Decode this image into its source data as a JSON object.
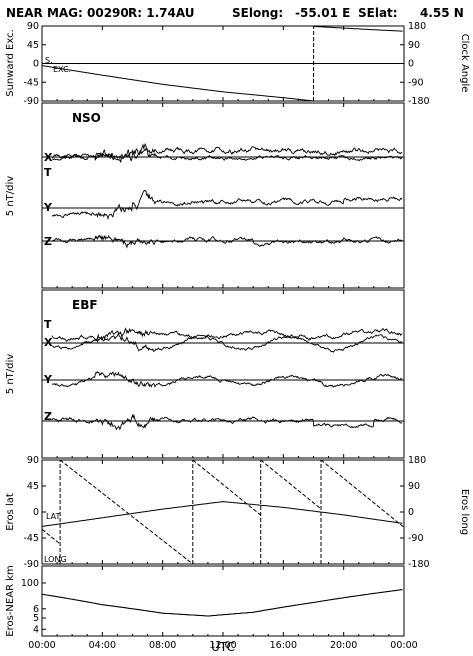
{
  "title": {
    "mission": "NEAR MAG: 00290",
    "r": "R: 1.74AU",
    "selong_label": "SElong:",
    "selong_value": "-55.01 E",
    "selat_label": "SElat:",
    "selat_value": "4.55 N"
  },
  "xaxis": {
    "label": "UTC",
    "ticks": [
      "00:00",
      "04:00",
      "08:00",
      "12:00",
      "16:00",
      "20:00",
      "00:00"
    ],
    "ticks_hours": [
      0,
      4,
      8,
      12,
      16,
      20,
      24
    ],
    "range_hours": [
      0,
      24
    ]
  },
  "chart_data": [
    {
      "type": "line",
      "panel": "sunward-clock",
      "ylabel_left": "Sunward Exc.",
      "ylabel_right": "Clock Angle",
      "left_ticks": [
        "90",
        "45",
        "0",
        "-45",
        "-90"
      ],
      "right_ticks": [
        "180",
        "90",
        "0",
        "-90",
        "-180"
      ],
      "ylim_left": [
        -90,
        90
      ],
      "ylim_right": [
        -180,
        180
      ],
      "annotations": [
        "S.",
        "EXC."
      ],
      "series": [
        {
          "axis": "left",
          "style": "solid",
          "x": [
            0,
            4,
            8,
            12,
            16,
            18
          ],
          "y": [
            -5,
            -28,
            -50,
            -68,
            -82,
            -90
          ]
        },
        {
          "axis": "right",
          "style": "dashed",
          "x": [
            18,
            18.01
          ],
          "y": [
            -180,
            180
          ]
        },
        {
          "axis": "right",
          "style": "solid",
          "x": [
            18.01,
            20,
            22,
            24
          ],
          "y": [
            178,
            170,
            162,
            155
          ]
        },
        {
          "axis": "left",
          "style": "solid",
          "x": [
            0,
            12,
            24
          ],
          "y": [
            0,
            0,
            0
          ]
        }
      ]
    },
    {
      "type": "line",
      "panel": "NSO",
      "label": "NSO",
      "ylabel": "5 nT/div",
      "components": [
        "T",
        "X",
        "Y",
        "Z"
      ],
      "baselines_offset_div": [
        0,
        -1,
        -2.8,
        -3.8
      ]
    },
    {
      "type": "line",
      "panel": "EBF",
      "label": "EBF",
      "ylabel": "5 nT/div",
      "components": [
        "T",
        "X",
        "Y",
        "Z"
      ]
    },
    {
      "type": "line",
      "panel": "eros-lat-long",
      "ylabel_left": "Eros lat",
      "ylabel_right": "Eros long",
      "left_ticks": [
        "90",
        "45",
        "0",
        "-45",
        "-90"
      ],
      "right_ticks": [
        "180",
        "90",
        "0",
        "-90",
        "-180"
      ],
      "ylim_left": [
        -90,
        90
      ],
      "ylim_right": [
        -180,
        180
      ],
      "annotations": [
        "LAT",
        "LONG"
      ],
      "series": [
        {
          "name": "LAT",
          "axis": "left",
          "style": "solid",
          "x": [
            0,
            4,
            8,
            12,
            16,
            20,
            24
          ],
          "y": [
            -25,
            -10,
            5,
            18,
            8,
            -5,
            -20
          ]
        }
      ],
      "long_wraps_hours": [
        1.2,
        10,
        14.5,
        18.5
      ]
    },
    {
      "type": "line",
      "panel": "eros-near-km",
      "ylabel": "Eros-NEAR km",
      "yscale": "log",
      "ticks": [
        "100",
        "6",
        "5",
        "4"
      ],
      "series": [
        {
          "style": "solid",
          "x": [
            0,
            4,
            8,
            11,
            14,
            18,
            24
          ],
          "y": [
            80,
            65,
            55,
            52,
            56,
            68,
            88
          ]
        }
      ]
    }
  ]
}
